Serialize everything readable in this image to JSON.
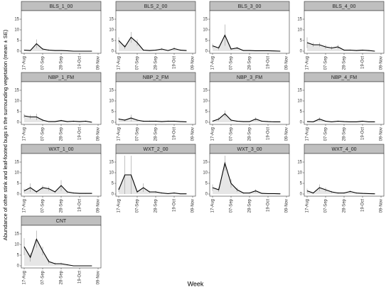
{
  "chart_data": {
    "type": "line",
    "x_label": "Week",
    "y_label": "Abundance of other stink and leaf-footed bugs in the surrounding vegetation (mean ± SE)",
    "categories": [
      "17-Aug",
      null,
      null,
      "07-Sep",
      null,
      null,
      "28-Sep",
      null,
      null,
      "19-Oct",
      null,
      null,
      "09-Nov"
    ],
    "ylim": [
      0,
      18
    ],
    "yticks": [
      0,
      5,
      10,
      15
    ],
    "color": "#000000",
    "fill": "#e6e6e6",
    "panels": [
      {
        "title": "BLS_1_00",
        "values": [
          0.5,
          0.3,
          3.5,
          1,
          0.5,
          0.3,
          0.3,
          0.2,
          0,
          0,
          0,
          0,
          null
        ],
        "errors": [
          0.3,
          0.2,
          2,
          0.5,
          0.3,
          0.2,
          0.2,
          0.1,
          0,
          0,
          0,
          0,
          null
        ]
      },
      {
        "title": "BLS_2_00",
        "values": [
          5,
          2,
          6.5,
          4,
          0.5,
          0.3,
          0.5,
          1,
          0.3,
          1.2,
          0.5,
          0.3,
          null
        ],
        "errors": [
          1.5,
          1,
          2.5,
          1.5,
          0.3,
          0.2,
          0.3,
          0.5,
          0.2,
          0.8,
          0.3,
          0.2,
          null
        ]
      },
      {
        "title": "BLS_3_00",
        "values": [
          2.5,
          1.5,
          7.5,
          1,
          1.5,
          0.3,
          0.3,
          0.2,
          0.2,
          0.2,
          0.1,
          0,
          null
        ],
        "errors": [
          1,
          1,
          5,
          0.5,
          0.5,
          0.2,
          0.2,
          0.1,
          0.1,
          0.1,
          0.1,
          0,
          null
        ]
      },
      {
        "title": "BLS_4_00",
        "values": [
          4,
          3,
          3,
          2,
          1.5,
          2,
          0.5,
          0.5,
          0.3,
          0.5,
          0.3,
          0,
          null
        ],
        "errors": [
          2.5,
          1,
          1,
          1,
          0.8,
          1,
          0.3,
          0.3,
          0.2,
          0.3,
          0.2,
          0,
          null
        ]
      },
      {
        "title": "NBP_1_FM",
        "values": [
          3,
          2.5,
          2.5,
          1,
          0.3,
          0.3,
          0.8,
          0.3,
          0.5,
          0.3,
          0.5,
          0,
          null
        ],
        "errors": [
          1,
          1,
          1.5,
          0.5,
          0.2,
          0.2,
          0.4,
          0.2,
          0.3,
          0.2,
          0.3,
          0,
          null
        ]
      },
      {
        "title": "NBP_2_FM",
        "values": [
          1.5,
          1,
          2,
          1,
          0.5,
          0.5,
          0.5,
          0.3,
          0.5,
          0.5,
          0.3,
          0.2,
          null
        ],
        "errors": [
          0.5,
          0.5,
          1.5,
          0.5,
          0.3,
          0.3,
          0.3,
          0.2,
          0.3,
          0.3,
          0.2,
          0.1,
          null
        ]
      },
      {
        "title": "NBP_3_FM",
        "values": [
          0.5,
          1.5,
          4,
          1,
          0.5,
          0.3,
          0.3,
          1.5,
          0.5,
          0.3,
          0.2,
          0.2,
          null
        ],
        "errors": [
          0.3,
          0.8,
          1.5,
          0.5,
          0.3,
          0.2,
          0.2,
          0.8,
          0.3,
          0.2,
          0.1,
          0.1,
          null
        ]
      },
      {
        "title": "NBP_4_FM",
        "values": [
          0.3,
          0.2,
          1.5,
          0.5,
          0.2,
          0.5,
          0.3,
          0.2,
          0.2,
          0.5,
          0.2,
          0.2,
          null
        ],
        "errors": [
          0.2,
          0.1,
          0.8,
          0.3,
          0.1,
          0.3,
          0.2,
          0.1,
          0.1,
          0.3,
          0.1,
          0.1,
          null
        ]
      },
      {
        "title": "WXT_1_00",
        "values": [
          1.5,
          3,
          1,
          3,
          2.5,
          1,
          4,
          1,
          0.5,
          0.3,
          0.3,
          0.3,
          null
        ],
        "errors": [
          1,
          2,
          0.5,
          1,
          1,
          0.5,
          2.5,
          0.5,
          0.3,
          0.2,
          0.2,
          0.2,
          null
        ]
      },
      {
        "title": "WXT_2_00",
        "values": [
          2,
          9,
          9,
          1,
          3,
          1,
          1,
          0.5,
          0.2,
          0.5,
          0.1,
          0.1,
          null
        ],
        "errors": [
          1,
          9,
          9,
          0.5,
          2,
          0.5,
          0.5,
          0.3,
          0.1,
          0.3,
          0.1,
          0.1,
          null
        ]
      },
      {
        "title": "WXT_3_00",
        "values": [
          3,
          2,
          14.5,
          5,
          2,
          0.5,
          0.5,
          1.5,
          0.3,
          0.2,
          0.2,
          0.1,
          null
        ],
        "errors": [
          1.5,
          1,
          3.5,
          2,
          1,
          0.3,
          0.3,
          0.8,
          0.2,
          0.1,
          0.1,
          0.1,
          null
        ]
      },
      {
        "title": "WXT_4_00",
        "values": [
          1.5,
          0.5,
          3,
          2,
          1,
          0.5,
          0.5,
          1.2,
          0.5,
          0.3,
          0.2,
          0.1,
          null
        ],
        "errors": [
          1,
          0.3,
          1.5,
          1,
          0.5,
          0.3,
          0.3,
          0.5,
          0.3,
          0.2,
          0.1,
          0.1,
          null
        ]
      },
      {
        "title": "CNT",
        "values": [
          9,
          4,
          12.5,
          7,
          2,
          1,
          1,
          0.5,
          0,
          0,
          0,
          0,
          null
        ],
        "errors": [
          4,
          2,
          4,
          2,
          1,
          0.5,
          0.5,
          0.3,
          0,
          0,
          0,
          0,
          null
        ]
      }
    ]
  }
}
